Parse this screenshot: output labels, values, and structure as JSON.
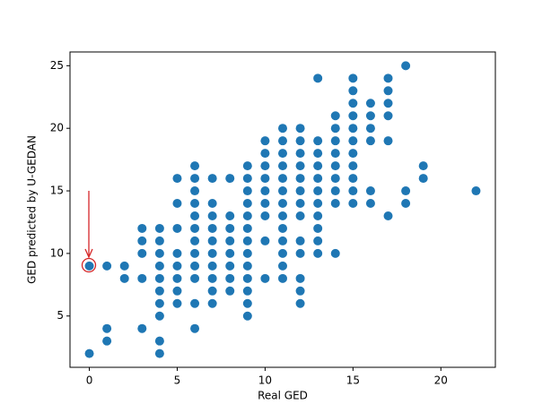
{
  "chart_data": {
    "type": "scatter",
    "xlabel": "Real GED",
    "ylabel": "GED predicted by U-GEDAN",
    "xlim": [
      -1.1,
      23.1
    ],
    "ylim": [
      0.9,
      26.1
    ],
    "xticks": [
      0,
      5,
      10,
      15,
      20
    ],
    "yticks": [
      5,
      10,
      15,
      20,
      25
    ],
    "color": "#1f77b4",
    "x": [
      0,
      0,
      1,
      1,
      1,
      2,
      2,
      3,
      3,
      3,
      3,
      3,
      4,
      4,
      4,
      4,
      4,
      4,
      4,
      4,
      4,
      4,
      5,
      5,
      5,
      5,
      5,
      5,
      5,
      5,
      6,
      6,
      6,
      6,
      6,
      6,
      6,
      6,
      6,
      6,
      6,
      6,
      7,
      7,
      7,
      7,
      7,
      7,
      7,
      7,
      7,
      7,
      8,
      8,
      8,
      8,
      8,
      8,
      8,
      8,
      9,
      9,
      9,
      9,
      9,
      9,
      9,
      9,
      9,
      9,
      9,
      9,
      9,
      10,
      10,
      10,
      10,
      10,
      10,
      10,
      10,
      10,
      11,
      11,
      11,
      11,
      11,
      11,
      11,
      11,
      11,
      11,
      11,
      11,
      11,
      12,
      12,
      12,
      12,
      12,
      12,
      12,
      12,
      12,
      12,
      12,
      12,
      12,
      13,
      13,
      13,
      13,
      13,
      13,
      13,
      13,
      13,
      13,
      13,
      14,
      14,
      14,
      14,
      14,
      14,
      14,
      14,
      14,
      15,
      15,
      15,
      15,
      15,
      15,
      15,
      15,
      15,
      15,
      15,
      16,
      16,
      16,
      16,
      16,
      16,
      17,
      17,
      17,
      17,
      17,
      17,
      18,
      18,
      18,
      19,
      19,
      22
    ],
    "y": [
      2,
      9,
      9,
      4,
      3,
      9,
      8,
      12,
      11,
      10,
      8,
      4,
      12,
      11,
      10,
      9,
      8,
      7,
      6,
      5,
      3,
      2,
      16,
      14,
      12,
      10,
      9,
      8,
      7,
      6,
      17,
      16,
      15,
      14,
      13,
      12,
      11,
      10,
      9,
      8,
      6,
      4,
      16,
      14,
      13,
      12,
      11,
      10,
      9,
      8,
      7,
      6,
      16,
      13,
      12,
      11,
      10,
      9,
      8,
      7,
      17,
      16,
      15,
      14,
      13,
      12,
      11,
      10,
      9,
      8,
      7,
      6,
      5,
      19,
      18,
      17,
      16,
      15,
      14,
      13,
      11,
      8,
      20,
      19,
      18,
      17,
      16,
      15,
      14,
      13,
      12,
      11,
      10,
      9,
      8,
      20,
      19,
      18,
      17,
      16,
      15,
      14,
      13,
      11,
      10,
      8,
      7,
      6,
      24,
      19,
      18,
      17,
      16,
      15,
      14,
      13,
      12,
      11,
      10,
      21,
      20,
      19,
      18,
      17,
      16,
      15,
      14,
      10,
      24,
      23,
      22,
      21,
      20,
      19,
      18,
      17,
      16,
      15,
      14,
      22,
      21,
      20,
      19,
      15,
      14,
      24,
      23,
      22,
      21,
      19,
      13,
      25,
      15,
      14,
      17,
      16,
      15
    ]
  }
}
